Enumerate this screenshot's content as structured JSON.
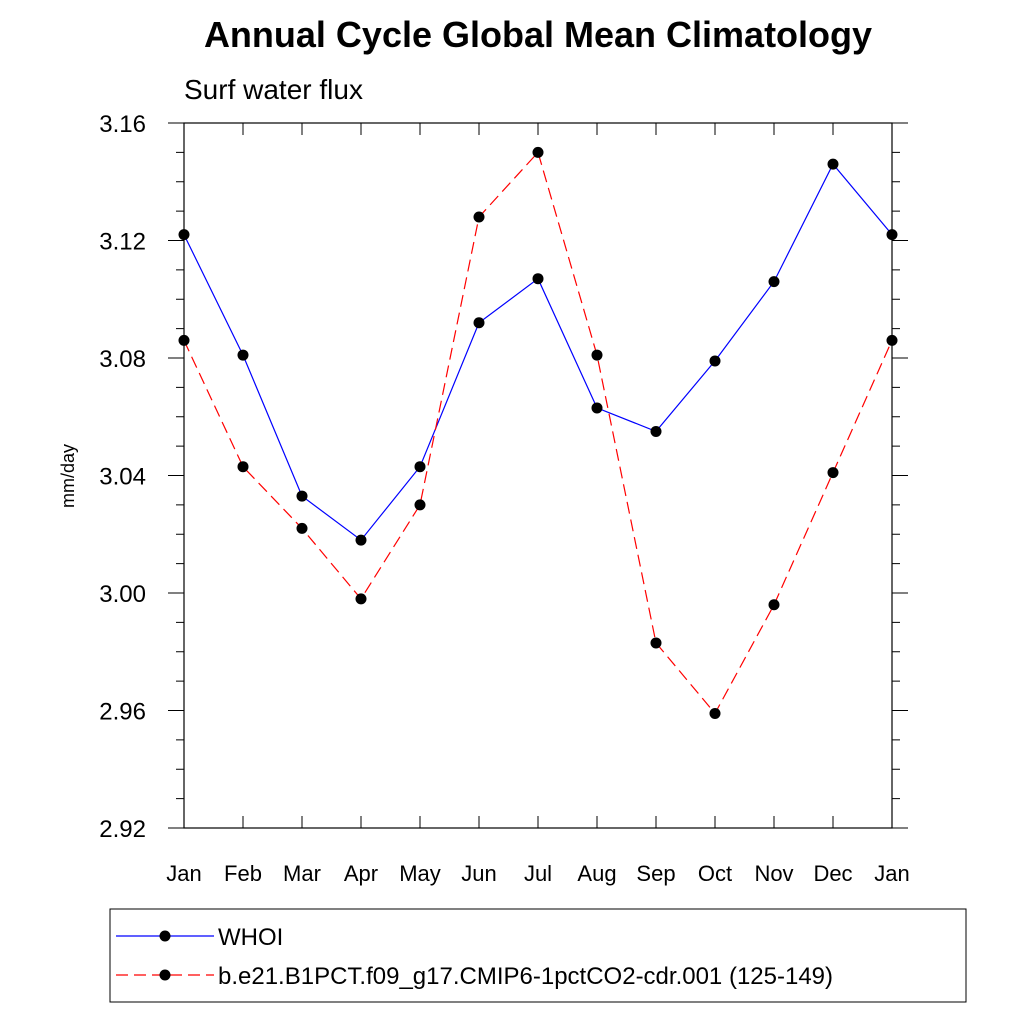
{
  "chart_data": {
    "type": "line",
    "title": "Annual Cycle Global Mean Climatology",
    "subtitle": "Surf water flux",
    "xlabel": "",
    "ylabel": "mm/day",
    "categories": [
      "Jan",
      "Feb",
      "Mar",
      "Apr",
      "May",
      "Jun",
      "Jul",
      "Aug",
      "Sep",
      "Oct",
      "Nov",
      "Dec",
      "Jan"
    ],
    "ylim": [
      2.92,
      3.16
    ],
    "yticks": [
      "2.92",
      "2.96",
      "3.00",
      "3.04",
      "3.08",
      "3.12",
      "3.16"
    ],
    "grid": false,
    "legend_position": "bottom",
    "series": [
      {
        "name": "WHOI",
        "color": "#0000ff",
        "line_style": "solid",
        "marker": "filled-circle",
        "values": [
          3.122,
          3.081,
          3.033,
          3.018,
          3.043,
          3.092,
          3.107,
          3.063,
          3.055,
          3.079,
          3.106,
          3.146,
          3.122
        ]
      },
      {
        "name": "b.e21.B1PCT.f09_g17.CMIP6-1pctCO2-cdr.001 (125-149)",
        "color": "#ff0000",
        "line_style": "dashed",
        "marker": "filled-circle",
        "values": [
          3.086,
          3.043,
          3.022,
          2.998,
          3.03,
          3.128,
          3.15,
          3.081,
          2.983,
          2.959,
          2.996,
          3.041,
          3.086
        ]
      }
    ]
  }
}
